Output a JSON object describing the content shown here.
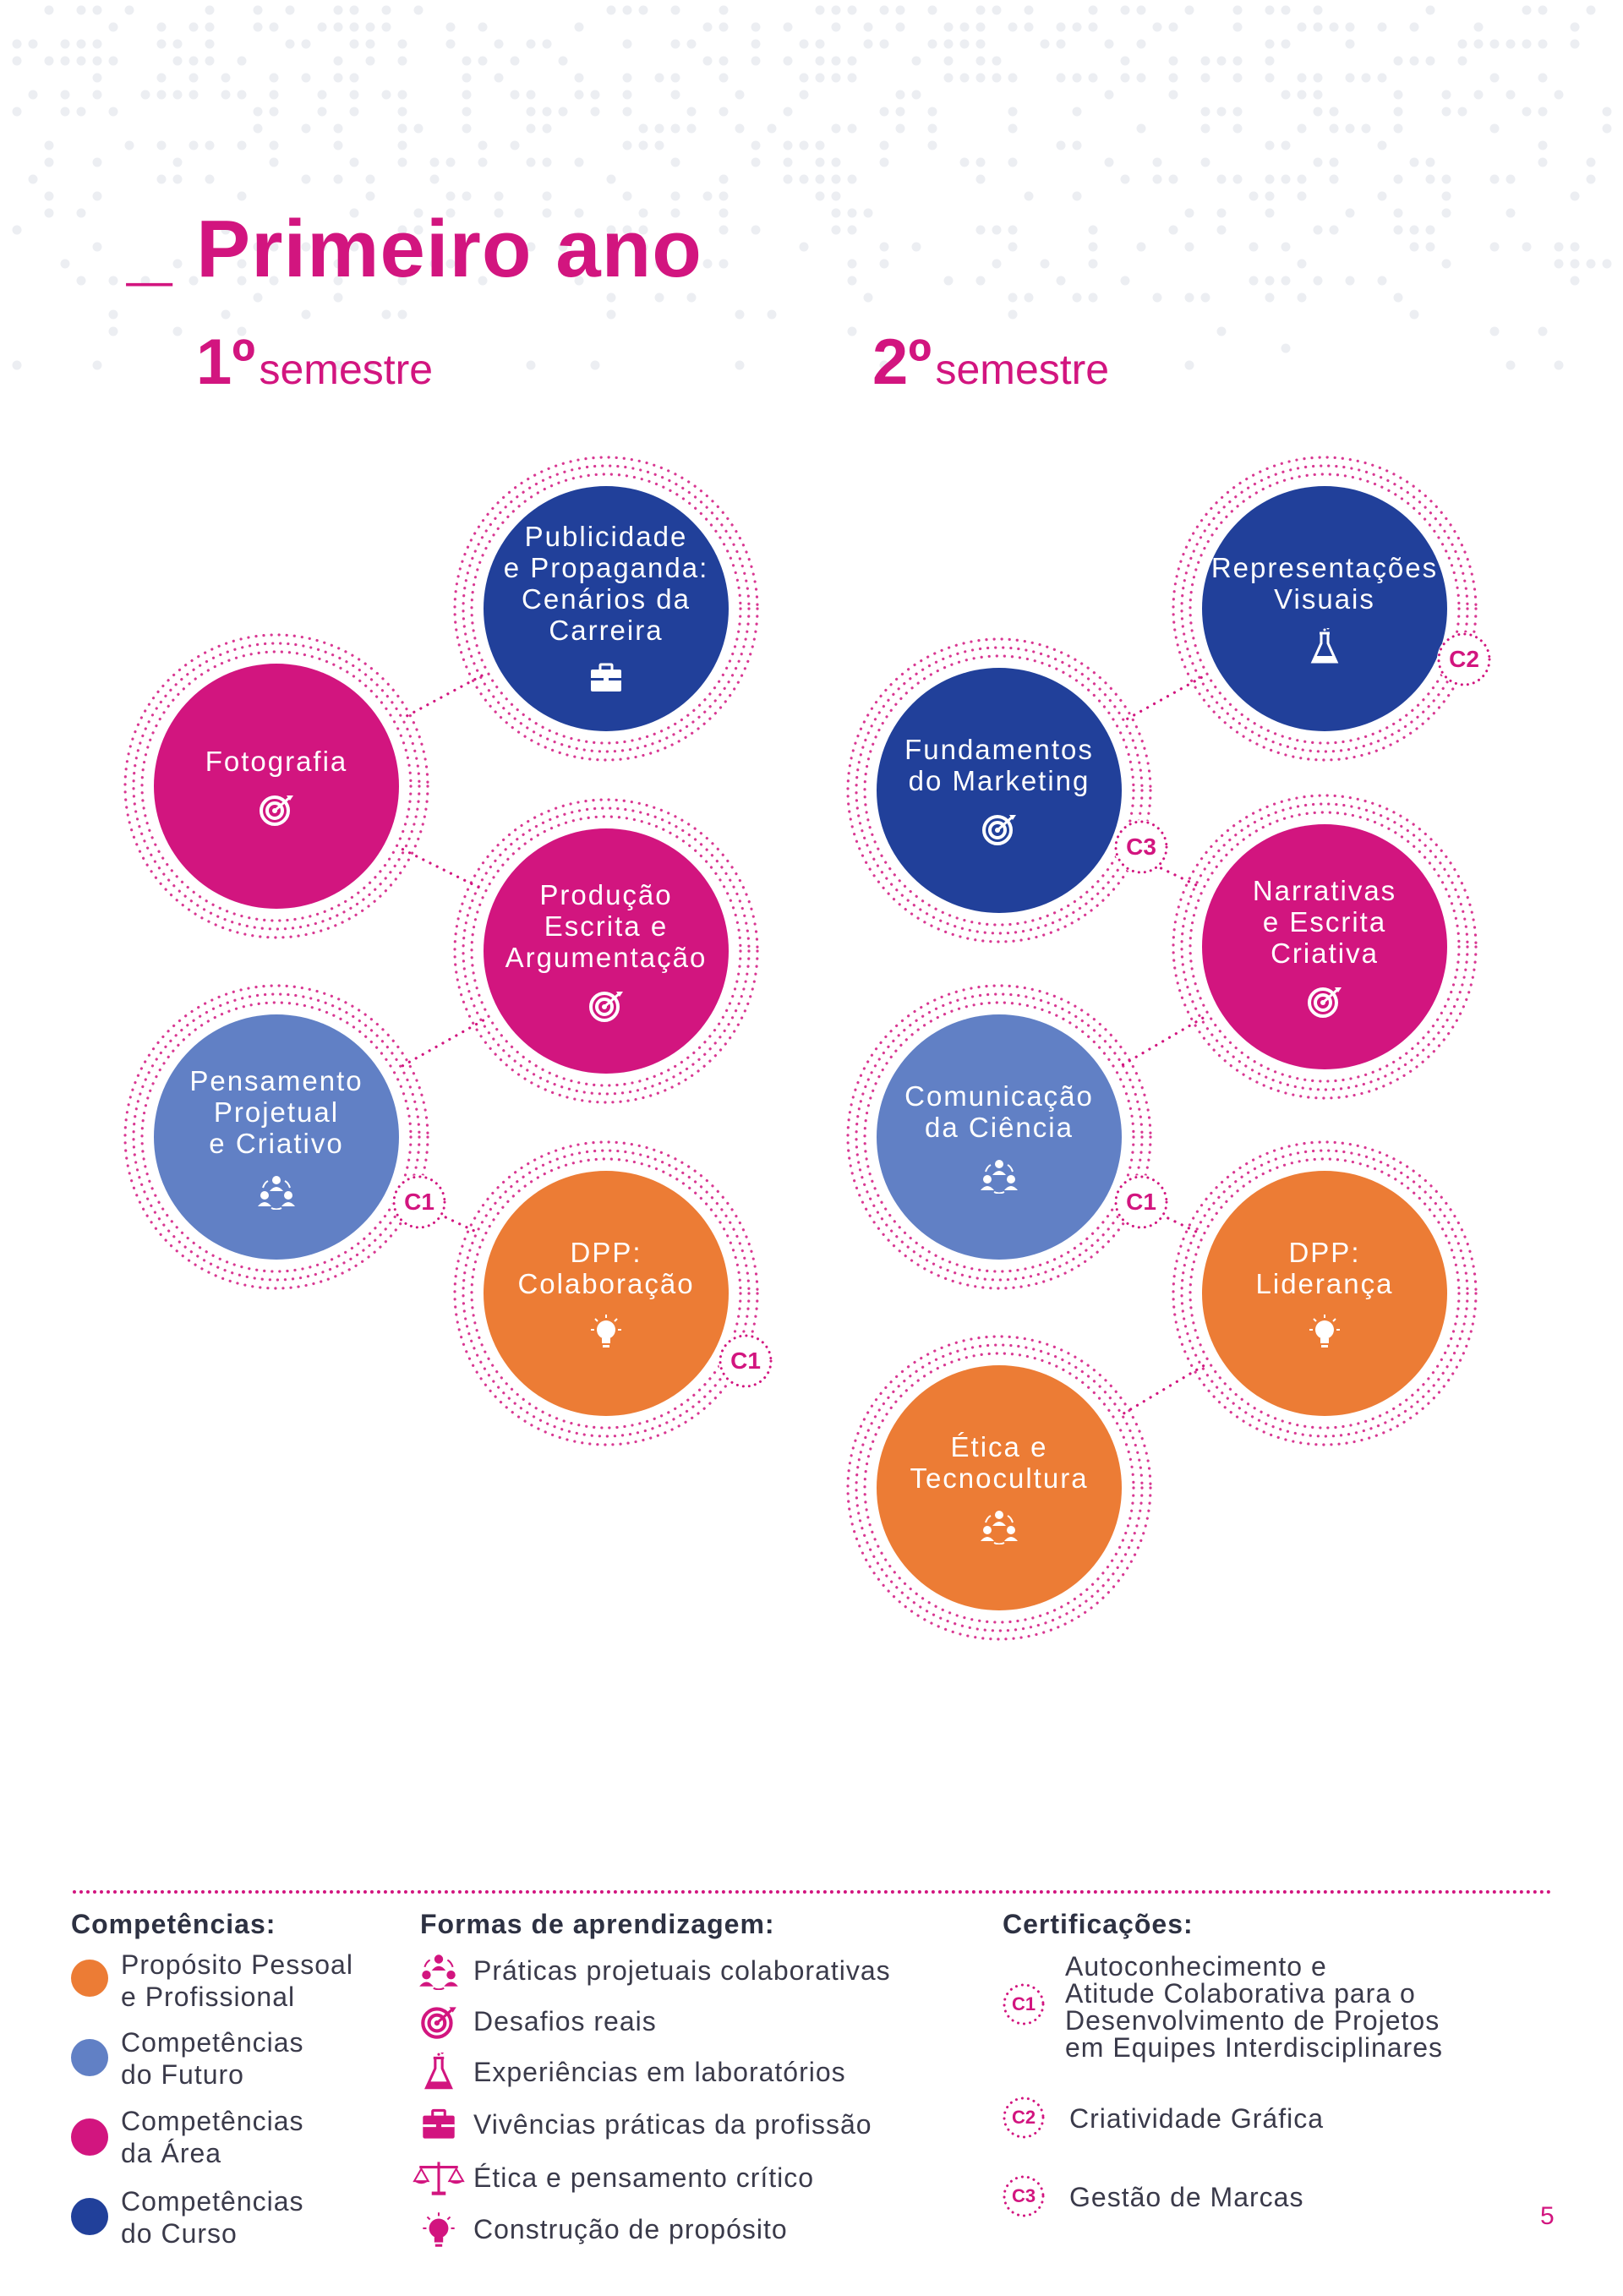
{
  "page": {
    "title": "_ Primeiro ano",
    "page_number": "5"
  },
  "colors": {
    "magenta": "#d2157f",
    "dark_blue": "#21409a",
    "light_blue": "#6180c5",
    "orange": "#ec7c35"
  },
  "semesters": [
    {
      "number": "1º",
      "word": "semestre"
    },
    {
      "number": "2º",
      "word": "semestre"
    }
  ],
  "courses": {
    "s1": [
      {
        "label": "Publicidade\ne Propaganda:\nCenários da\nCarreira",
        "icon": "briefcase-icon",
        "color": "#21409a"
      },
      {
        "label": "Fotografia",
        "icon": "target-icon",
        "color": "#d2157f"
      },
      {
        "label": "Produção\nEscrita e\nArgumentação",
        "icon": "target-icon",
        "color": "#d2157f"
      },
      {
        "label": "Pensamento\nProjetual\ne Criativo",
        "icon": "people-icon",
        "color": "#6180c5",
        "badge": "C1"
      },
      {
        "label": "DPP:\nColaboração",
        "icon": "lightbulb-icon",
        "color": "#ec7c35",
        "badge": "C1"
      }
    ],
    "s2": [
      {
        "label": "Representações\nVisuais",
        "icon": "flask-icon",
        "color": "#21409a",
        "badge": "C2"
      },
      {
        "label": "Fundamentos\ndo Marketing",
        "icon": "target-icon",
        "color": "#21409a",
        "badge": "C3"
      },
      {
        "label": "Narrativas\ne Escrita\nCriativa",
        "icon": "target-icon",
        "color": "#d2157f"
      },
      {
        "label": "Comunicação\nda Ciência",
        "icon": "people-icon",
        "color": "#6180c5",
        "badge": "C1"
      },
      {
        "label": "DPP:\nLiderança",
        "icon": "lightbulb-icon",
        "color": "#ec7c35"
      },
      {
        "label": "Ética e\nTecnocultura",
        "icon": "people-icon",
        "color": "#ec7c35"
      }
    ]
  },
  "legend": {
    "competencias": {
      "heading": "Competências:",
      "items": [
        {
          "label": "Propósito Pessoal\ne Profissional",
          "color": "#ec7c35"
        },
        {
          "label": "Competências\ndo Futuro",
          "color": "#6180c5"
        },
        {
          "label": "Competências\nda Área",
          "color": "#d2157f"
        },
        {
          "label": "Competências\ndo Curso",
          "color": "#21409a"
        }
      ]
    },
    "formas": {
      "heading": "Formas de aprendizagem:",
      "items": [
        {
          "label": "Práticas projetuais colaborativas",
          "icon": "people-icon"
        },
        {
          "label": "Desafios reais",
          "icon": "target-icon"
        },
        {
          "label": "Experiências em laboratórios",
          "icon": "flask-icon"
        },
        {
          "label": "Vivências práticas da profissão",
          "icon": "briefcase-icon"
        },
        {
          "label": "Ética e pensamento crítico",
          "icon": "scale-icon"
        },
        {
          "label": "Construção de propósito",
          "icon": "lightbulb-icon"
        }
      ]
    },
    "certificacoes": {
      "heading": "Certificações:",
      "items": [
        {
          "code": "C1",
          "label": "Autoconhecimento e\nAtitude Colaborativa para o\nDesenvolvimento de Projetos\nem Equipes Interdisciplinares"
        },
        {
          "code": "C2",
          "label": "Criatividade Gráfica"
        },
        {
          "code": "C3",
          "label": "Gestão de Marcas"
        }
      ]
    }
  }
}
